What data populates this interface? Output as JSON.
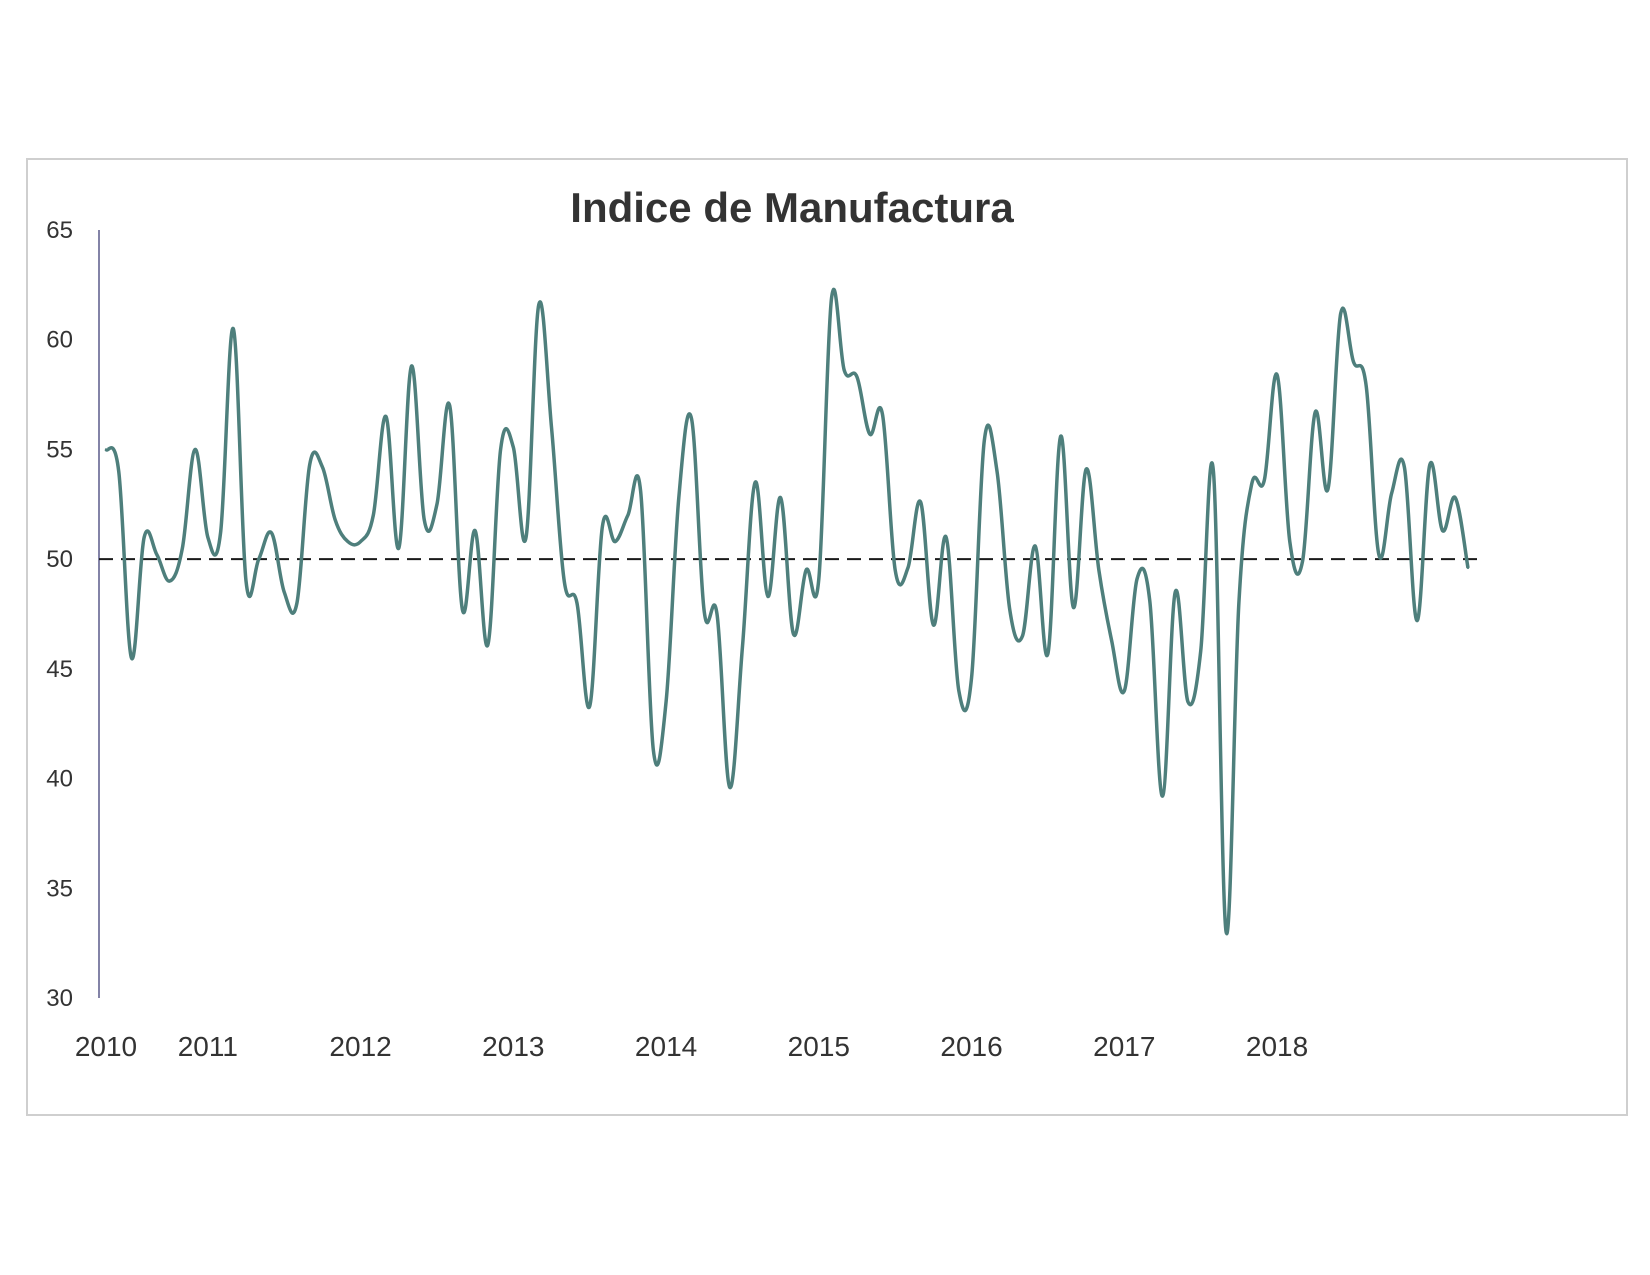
{
  "chart_data": {
    "type": "line",
    "title": "Indice de Manufactura",
    "xlabel": "",
    "ylabel": "",
    "ylim": [
      30,
      65
    ],
    "y_ticks": [
      "30",
      "35",
      "40",
      "45",
      "50",
      "55",
      "60",
      "65"
    ],
    "x_tick_labels": [
      {
        "label": "2010",
        "index": 0
      },
      {
        "label": "2011",
        "index": 8
      },
      {
        "label": "2012",
        "index": 20
      },
      {
        "label": "2013",
        "index": 32
      },
      {
        "label": "2014",
        "index": 44
      },
      {
        "label": "2015",
        "index": 56
      },
      {
        "label": "2016",
        "index": 68
      },
      {
        "label": "2017",
        "index": 80
      },
      {
        "label": "2018",
        "index": 92
      }
    ],
    "reference_line": {
      "value": 50,
      "style": "dashed"
    },
    "grid": false,
    "legend": "none",
    "series": [
      {
        "color": "#4e7f7c",
        "values": [
          55.0,
          54.0,
          45.5,
          51.0,
          50.2,
          49.0,
          50.5,
          55.0,
          51.0,
          51.2,
          60.5,
          49.0,
          50.0,
          51.2,
          48.5,
          48.0,
          54.3,
          54.2,
          51.8,
          50.8,
          50.8,
          52.0,
          56.5,
          50.5,
          58.8,
          51.8,
          52.5,
          57.0,
          47.7,
          51.3,
          46.1,
          55.0,
          55.1,
          51.0,
          61.6,
          56.0,
          49.0,
          48.0,
          43.3,
          51.5,
          50.8,
          52.0,
          53.1,
          41.3,
          43.5,
          52.8,
          56.4,
          47.6,
          47.5,
          39.6,
          46.0,
          53.5,
          48.3,
          52.8,
          46.6,
          49.5,
          49.1,
          61.9,
          58.6,
          58.3,
          55.7,
          56.6,
          49.5,
          49.6,
          52.6,
          47.0,
          51.0,
          44.0,
          44.6,
          55.4,
          54.0,
          47.7,
          46.5,
          50.6,
          45.7,
          55.6,
          47.8,
          54.1,
          49.5,
          46.3,
          44.0,
          49.1,
          48.1,
          39.2,
          48.5,
          43.5,
          45.8,
          54.0,
          33.0,
          48.0,
          53.4,
          53.6,
          58.4,
          50.8,
          49.9,
          56.7,
          53.2,
          61.2,
          59.0,
          57.9,
          50.2,
          53.0,
          54.2,
          47.2,
          54.3,
          51.3,
          52.8,
          49.6
        ]
      }
    ]
  }
}
